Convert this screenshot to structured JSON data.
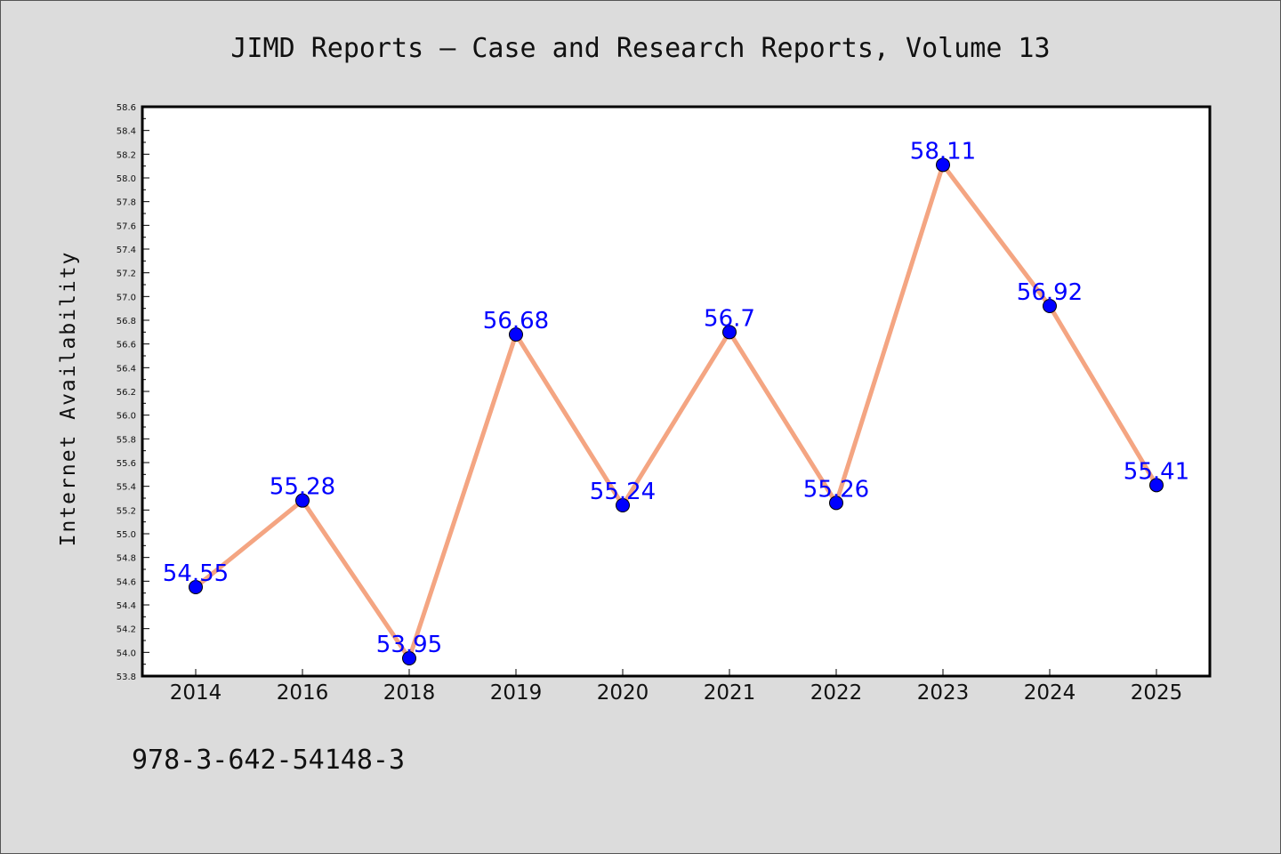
{
  "chart_data": {
    "type": "line",
    "title": "JIMD Reports – Case and Research Reports, Volume 13",
    "ylabel": "Internet Availability",
    "xlabel": "",
    "categories": [
      "2014",
      "2016",
      "2018",
      "2019",
      "2020",
      "2021",
      "2022",
      "2023",
      "2024",
      "2025"
    ],
    "series": [
      {
        "values": [
          54.55,
          55.28,
          53.95,
          56.68,
          55.24,
          56.7,
          55.26,
          58.11,
          56.92,
          55.41
        ],
        "data_labels": [
          "54.55",
          "55.28",
          "53.95",
          "56.68",
          "55.24",
          "56.7",
          "55.26",
          "58.11",
          "56.92",
          "55.41"
        ]
      }
    ],
    "ylim": [
      53.8,
      58.6
    ],
    "yticks": [
      "53.8",
      "54.0",
      "54.2",
      "54.4",
      "54.6",
      "54.8",
      "55.0",
      "55.2",
      "55.4",
      "55.6",
      "55.8",
      "56.0",
      "56.2",
      "56.4",
      "56.6",
      "56.8",
      "57.0",
      "57.2",
      "57.4",
      "57.6",
      "57.8",
      "58.0",
      "58.2",
      "58.4",
      "58.6"
    ],
    "grid": false,
    "line_color": "#f4a582",
    "marker_color": "#0000ff",
    "label_color": "#0000ff",
    "background": "#dcdcdc",
    "plot_background": "#ffffff"
  },
  "footnote": "978-3-642-54148-3"
}
